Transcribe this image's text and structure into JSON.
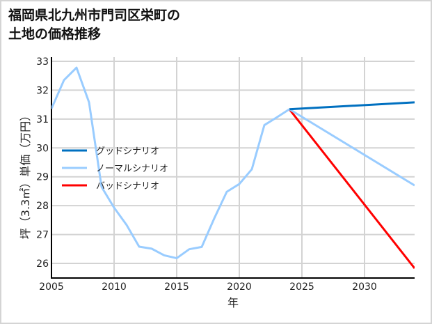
{
  "title_line1": "福岡県北九州市門司区栄町の",
  "title_line2": "土地の価格推移",
  "chart_data": {
    "type": "line",
    "title": "福岡県北九州市門司区栄町の土地の価格推移",
    "xlabel": "年",
    "ylabel": "坪（3.3㎡）単価（万円）",
    "xlim": [
      2005,
      2034
    ],
    "ylim": [
      25.5,
      33.2
    ],
    "xticks": [
      2005,
      2010,
      2015,
      2020,
      2025,
      2030
    ],
    "yticks": [
      26,
      27,
      28,
      29,
      30,
      31,
      32,
      33
    ],
    "grid": true,
    "legend_position": "left-center",
    "history": {
      "x": [
        2005,
        2006,
        2007,
        2008,
        2009,
        2010,
        2011,
        2012,
        2013,
        2014,
        2015,
        2016,
        2017,
        2018,
        2019,
        2020,
        2021,
        2022,
        2023,
        2024
      ],
      "y": [
        31.36,
        32.35,
        32.78,
        31.58,
        28.65,
        27.93,
        27.33,
        26.58,
        26.51,
        26.28,
        26.18,
        26.49,
        26.57,
        27.56,
        28.48,
        28.75,
        29.26,
        30.79,
        31.06,
        31.34
      ]
    },
    "series": [
      {
        "name": "グッドシナリオ",
        "color": "#0070c0",
        "x": [
          2024,
          2034
        ],
        "values": [
          31.34,
          31.58
        ]
      },
      {
        "name": "ノーマルシナリオ",
        "color": "#99ccff",
        "x": [
          2024,
          2034
        ],
        "values": [
          31.34,
          28.7
        ]
      },
      {
        "name": "バッドシナリオ",
        "color": "#ff0000",
        "x": [
          2024,
          2034
        ],
        "values": [
          31.34,
          25.83
        ]
      }
    ]
  }
}
